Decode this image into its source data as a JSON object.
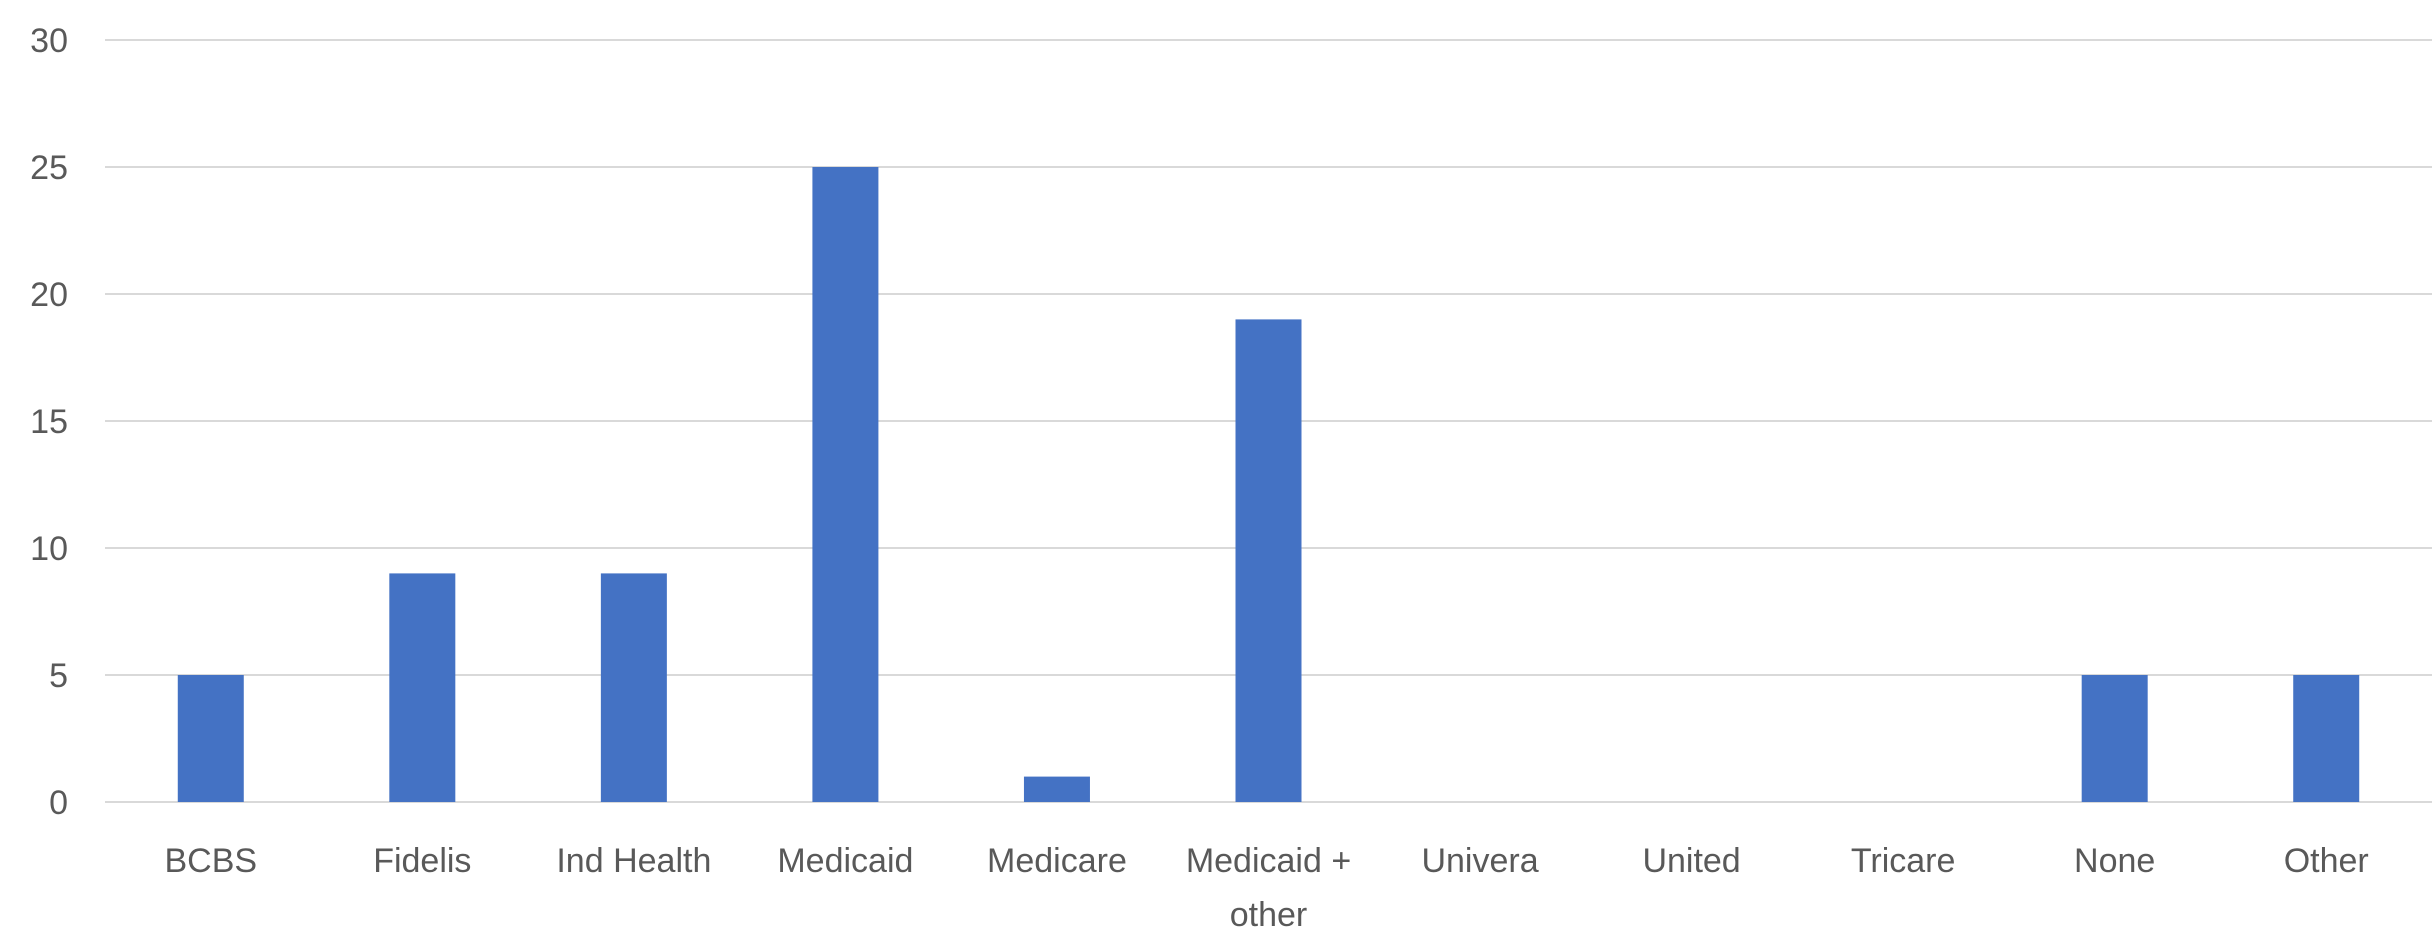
{
  "chart_data": {
    "type": "bar",
    "categories": [
      "BCBS",
      "Fidelis",
      "Ind Health",
      "Medicaid",
      "Medicare",
      "Medicaid + other",
      "Univera",
      "United",
      "Tricare",
      "None",
      "Other"
    ],
    "category_label_lines": [
      [
        "BCBS"
      ],
      [
        "Fidelis"
      ],
      [
        "Ind Health"
      ],
      [
        "Medicaid"
      ],
      [
        "Medicare"
      ],
      [
        "Medicaid +",
        "other"
      ],
      [
        "Univera"
      ],
      [
        "United"
      ],
      [
        "Tricare"
      ],
      [
        "None"
      ],
      [
        "Other"
      ]
    ],
    "values": [
      5,
      9,
      9,
      25,
      1,
      19,
      0,
      0,
      0,
      5,
      5
    ],
    "ylim": [
      0,
      30
    ],
    "yticks": [
      0,
      5,
      10,
      15,
      20,
      25,
      30
    ],
    "grid": true,
    "bar_color": "#4472C4",
    "grid_color": "#D9D9D9",
    "text_color": "#595959",
    "title": "",
    "xlabel": "",
    "ylabel": ""
  }
}
